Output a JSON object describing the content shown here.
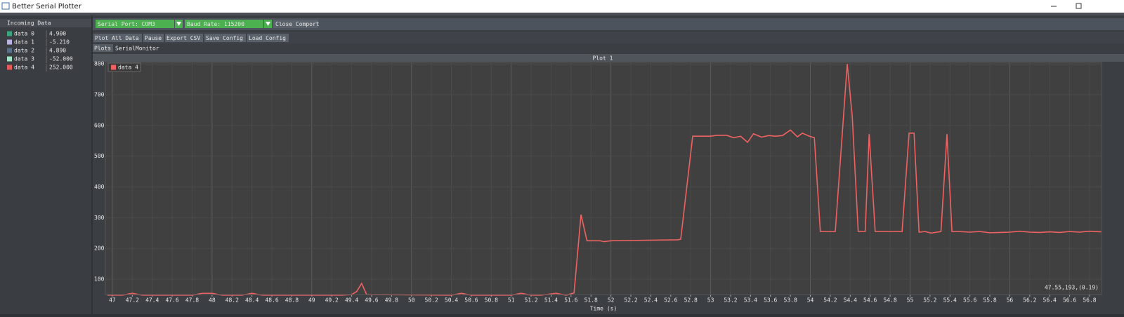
{
  "window": {
    "title": "Better Serial Plotter"
  },
  "sidebar": {
    "title": "Incoming Data",
    "items": [
      {
        "name": "data 0",
        "value": "4.900",
        "color": "#3aa57a"
      },
      {
        "name": "data 1",
        "value": "-5.210",
        "color": "#b9b2e2"
      },
      {
        "name": "data 2",
        "value": "4.890",
        "color": "#56708c"
      },
      {
        "name": "data 3",
        "value": "-52.000",
        "color": "#a3e3c6"
      },
      {
        "name": "data 4",
        "value": "252.000",
        "color": "#e85a5a"
      }
    ]
  },
  "toolbar": {
    "serial_port": "Serial Port: COM3",
    "baud_rate": "Baud Rate: 115200",
    "close": "Close Comport",
    "buttons": [
      "Plot All Data",
      "Pause",
      "Export CSV",
      "Save Config",
      "Load Config"
    ]
  },
  "tabs": [
    "Plots",
    "SerialMonitor"
  ],
  "plot_title": "Plot 1",
  "cursor_readout": "47.55,193,(0.19)",
  "chart_data": {
    "type": "line",
    "x_label": "Time (s)",
    "grid": true,
    "legend": "upper left",
    "xlim": [
      46.93,
      56.92
    ],
    "ylim": [
      50,
      805
    ],
    "xticks": [
      47,
      47.2,
      47.4,
      47.6,
      47.8,
      48,
      48.2,
      48.4,
      48.6,
      48.8,
      49,
      49.2,
      49.4,
      49.6,
      49.8,
      50,
      50.2,
      50.4,
      50.6,
      50.8,
      51,
      51.2,
      51.4,
      51.6,
      51.8,
      52,
      52.2,
      52.4,
      52.6,
      52.8,
      53,
      53.2,
      53.4,
      53.6,
      53.8,
      54,
      54.2,
      54.4,
      54.6,
      54.8,
      55,
      55.2,
      55.4,
      55.6,
      55.8,
      56,
      56.2,
      56.4,
      56.6,
      56.8
    ],
    "yticks": [
      100,
      200,
      300,
      400,
      500,
      600,
      700,
      800
    ],
    "x": [
      46.95,
      47.1,
      47.2,
      47.3,
      47.8,
      47.9,
      48.0,
      48.1,
      48.3,
      48.4,
      48.5,
      49.3,
      49.4,
      49.45,
      49.5,
      49.55,
      50.4,
      50.5,
      50.6,
      51.0,
      51.1,
      51.2,
      51.3,
      51.45,
      51.55,
      51.63,
      51.7,
      51.76,
      51.89,
      51.93,
      52.0,
      52.67,
      52.7,
      52.75,
      52.82,
      53.0,
      53.06,
      53.16,
      53.23,
      53.3,
      53.37,
      53.43,
      53.51,
      53.58,
      53.65,
      53.72,
      53.8,
      53.87,
      53.92,
      53.99,
      54.04,
      54.1,
      54.25,
      54.37,
      54.42,
      54.48,
      54.55,
      54.59,
      54.65,
      54.92,
      54.99,
      55.04,
      55.09,
      55.15,
      55.21,
      55.31,
      55.37,
      55.42,
      55.49,
      55.6,
      55.7,
      55.8,
      55.9,
      56.0,
      56.1,
      56.2,
      56.3,
      56.4,
      56.5,
      56.6,
      56.7,
      56.8,
      56.92
    ],
    "series": [
      {
        "name": "data 4",
        "color": "#f06262",
        "values": [
          48,
          48,
          54,
          48,
          48,
          54,
          54,
          48,
          48,
          54,
          48,
          48,
          50,
          60,
          86,
          50,
          48,
          54,
          48,
          48,
          54,
          48,
          48,
          54,
          48,
          55,
          310,
          225,
          225,
          222,
          225,
          228,
          230,
          370,
          565,
          565,
          568,
          568,
          560,
          565,
          545,
          573,
          562,
          567,
          565,
          567,
          585,
          563,
          575,
          565,
          560,
          255,
          255,
          800,
          630,
          255,
          255,
          572,
          255,
          255,
          575,
          575,
          253,
          255,
          250,
          255,
          572,
          255,
          255,
          253,
          255,
          251,
          252,
          253,
          256,
          253,
          252,
          254,
          252,
          255,
          253,
          256,
          254
        ]
      }
    ]
  }
}
